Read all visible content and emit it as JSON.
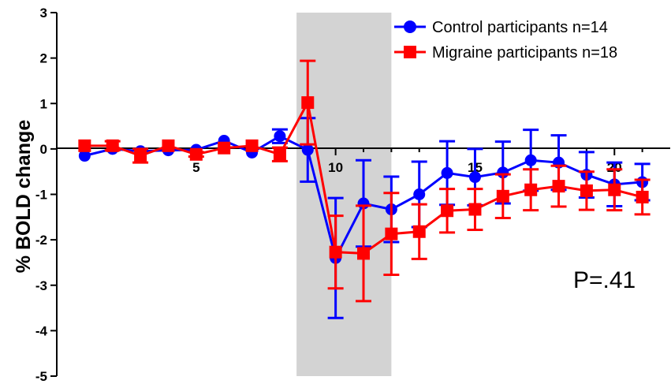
{
  "chart_data": {
    "type": "line",
    "title": "",
    "xlabel": "",
    "ylabel": "% BOLD change",
    "xlim": [
      0,
      22
    ],
    "ylim": [
      -5,
      3
    ],
    "x_ticks": [
      5,
      10,
      15,
      20
    ],
    "y_ticks": [
      3,
      2,
      1,
      0,
      -1,
      -2,
      -3,
      -4,
      -5
    ],
    "y_tick_labels": [
      "3",
      "2",
      "1",
      "0",
      "-1",
      "-2",
      "-3",
      "-4",
      "-5"
    ],
    "x_tick_labels": [
      "5",
      "10",
      "15",
      "20"
    ],
    "shaded_region": {
      "x_start": 8.6,
      "x_end": 12
    },
    "legend_position": "top-right",
    "grid": false,
    "annotation": "P=.41",
    "series": [
      {
        "name": "Control participants n=14",
        "color": "#0000ff",
        "marker": "circle",
        "x": [
          1,
          2,
          3,
          4,
          5,
          6,
          7,
          8,
          9,
          10,
          11,
          12,
          13,
          14,
          15,
          16,
          17,
          18,
          19,
          20,
          21
        ],
        "y": [
          -0.15,
          0.0,
          -0.05,
          -0.03,
          -0.02,
          0.18,
          -0.08,
          0.28,
          -0.02,
          -2.4,
          -1.2,
          -1.33,
          -1.0,
          -0.53,
          -0.62,
          -0.52,
          -0.25,
          -0.3,
          -0.57,
          -0.78,
          -0.73
        ],
        "err": [
          0.0,
          0.0,
          0.0,
          0.0,
          0.0,
          0.0,
          0.0,
          0.15,
          0.7,
          1.32,
          0.95,
          0.72,
          0.72,
          0.7,
          0.62,
          0.68,
          0.67,
          0.6,
          0.5,
          0.48,
          0.4
        ]
      },
      {
        "name": "Migraine participants n=18",
        "color": "#ff0000",
        "marker": "square",
        "x": [
          1,
          2,
          3,
          4,
          5,
          6,
          7,
          8,
          9,
          10,
          11,
          12,
          13,
          14,
          15,
          16,
          17,
          18,
          19,
          20,
          21
        ],
        "y": [
          0.07,
          0.07,
          -0.15,
          0.07,
          -0.12,
          0.02,
          0.07,
          -0.12,
          1.02,
          -2.27,
          -2.3,
          -1.87,
          -1.82,
          -1.36,
          -1.33,
          -1.04,
          -0.9,
          -0.82,
          -0.92,
          -0.9,
          -1.06
        ],
        "err": [
          0.0,
          0.1,
          0.15,
          0.0,
          0.05,
          0.0,
          0.0,
          0.15,
          0.92,
          0.8,
          1.05,
          0.9,
          0.6,
          0.48,
          0.45,
          0.48,
          0.45,
          0.45,
          0.42,
          0.45,
          0.38
        ]
      }
    ]
  }
}
